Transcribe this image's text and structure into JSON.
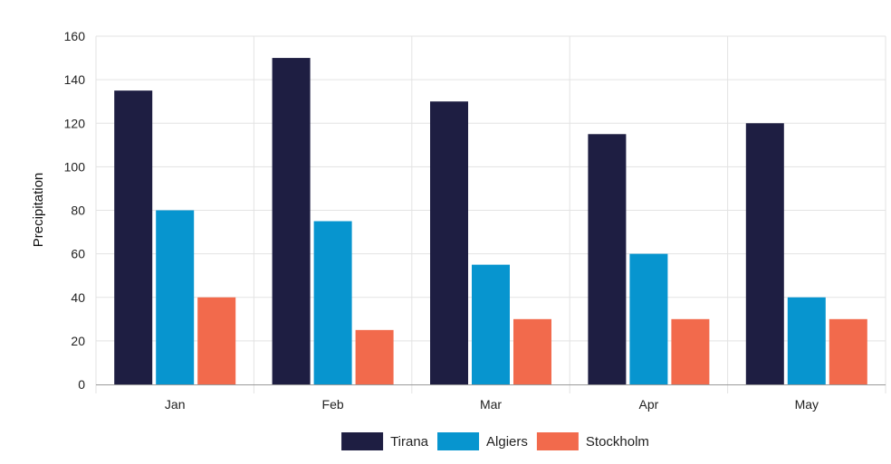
{
  "chart_data": {
    "type": "bar",
    "title": "",
    "xlabel": "",
    "ylabel": "Precipitation",
    "categories": [
      "Jan",
      "Feb",
      "Mar",
      "Apr",
      "May"
    ],
    "ylim": [
      0,
      160
    ],
    "yticks": [
      0,
      20,
      40,
      60,
      80,
      100,
      120,
      140,
      160
    ],
    "grid": true,
    "legend_position": "bottom",
    "series": [
      {
        "name": "Tirana",
        "color": "#1e1e42",
        "values": [
          135,
          150,
          130,
          115,
          120
        ]
      },
      {
        "name": "Algiers",
        "color": "#0795cf",
        "values": [
          80,
          75,
          55,
          60,
          40
        ]
      },
      {
        "name": "Stockholm",
        "color": "#f26a4c",
        "values": [
          40,
          25,
          30,
          30,
          30
        ]
      }
    ]
  }
}
